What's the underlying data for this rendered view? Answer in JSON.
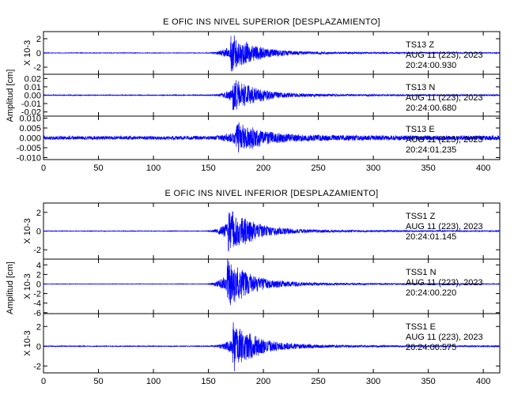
{
  "chart_data": [
    {
      "type": "line",
      "title": "E OFIC INS NIVEL SUPERIOR [DESPLAZAMIENTO]",
      "ylabel": "Amplitud [cm]",
      "xlim": [
        0,
        415
      ],
      "x_ticks": [
        "0",
        "50",
        "100",
        "150",
        "200",
        "250",
        "300",
        "350",
        "400"
      ],
      "grid": false,
      "panels": [
        {
          "scale_label": "X 10-3",
          "ylim": [
            -3,
            3
          ],
          "y_ticks": [
            "2",
            "0",
            "-2"
          ],
          "annotation": [
            "TS13   Z",
            "AUG 11 (223), 2023",
            "20:24:00.930"
          ],
          "peak_time": 170,
          "peak_amp": 2.9,
          "seed": 11,
          "pre_event_amp": 0.05
        },
        {
          "scale_label": "",
          "ylim": [
            -0.025,
            0.025
          ],
          "y_ticks": [
            "0.02",
            "0.01",
            "0.00",
            "-0.01",
            "-0.02"
          ],
          "annotation": [
            "TS13   N",
            "AUG 11 (223), 2023",
            "20:24:00.680"
          ],
          "peak_time": 172,
          "peak_amp": 0.022,
          "seed": 23,
          "pre_event_amp": 0.0006
        },
        {
          "scale_label": "",
          "ylim": [
            -0.011,
            0.011
          ],
          "y_ticks": [
            "0.010",
            "0.005",
            "0.000",
            "-0.005",
            "-0.010"
          ],
          "annotation": [
            "TS13   E",
            "AUG 11 (223), 2023",
            "20:24:01.235"
          ],
          "peak_time": 175,
          "peak_amp": 0.0085,
          "seed": 37,
          "pre_event_amp": 0.0012
        }
      ]
    },
    {
      "type": "line",
      "title": "E OFIC INS NIVEL INFERIOR [DESPLAZAMIENTO]",
      "ylabel": "Amplitud [cm]",
      "xlim": [
        0,
        415
      ],
      "x_ticks": [
        "0",
        "50",
        "100",
        "150",
        "200",
        "250",
        "300",
        "350",
        "400"
      ],
      "grid": false,
      "panels": [
        {
          "scale_label": "X 10-3",
          "ylim": [
            -3,
            3
          ],
          "y_ticks": [
            "2",
            "0",
            "-2"
          ],
          "annotation": [
            "TSS1   Z",
            "AUG 11 (223), 2023",
            "20:24:01.145"
          ],
          "peak_time": 168,
          "peak_amp": 2.8,
          "seed": 41,
          "pre_event_amp": 0.04
        },
        {
          "scale_label": "X 10-3",
          "ylim": [
            -6.2,
            5.2
          ],
          "y_ticks": [
            "4",
            "2",
            "0",
            "-2",
            "-4",
            "-6"
          ],
          "annotation": [
            "TSS1   N",
            "AUG 11 (223), 2023",
            "20:24:00.220"
          ],
          "peak_time": 167,
          "peak_amp": 5.5,
          "seed": 53,
          "pre_event_amp": 0.06
        },
        {
          "scale_label": "X 10-3",
          "ylim": [
            -2.7,
            3.3
          ],
          "y_ticks": [
            "2",
            "0",
            "-2"
          ],
          "annotation": [
            "TSS1   E",
            "AUG 11 (223), 2023",
            "20:24:00.575"
          ],
          "peak_time": 172,
          "peak_amp": 2.6,
          "seed": 67,
          "pre_event_amp": 0.05
        }
      ]
    }
  ],
  "style": {
    "trace_color": "#0000ff",
    "axis_color": "#000000",
    "background": "#ffffff"
  }
}
